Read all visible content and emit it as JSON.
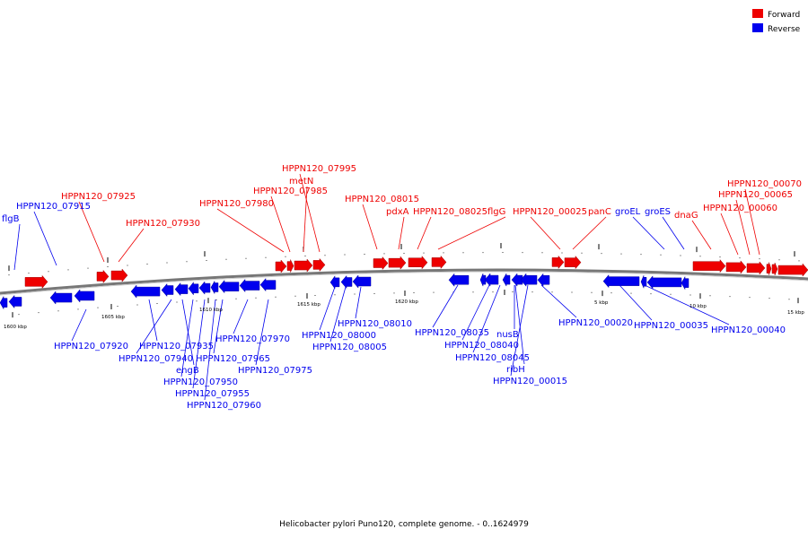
{
  "legend": {
    "forward": "Forward",
    "reverse": "Reverse",
    "forward_color": "#ee0000",
    "reverse_color": "#0000ee"
  },
  "caption": "Helicobacter pylori Puno120, complete genome. - 0..1624979",
  "ticks": [
    "1600 kbp",
    "1605 kbp",
    "1610 kbp",
    "1615 kbp",
    "1620 kbp",
    "5 kbp",
    "10 kbp",
    "15 kbp"
  ],
  "forward_genes": [
    "HPPN120_07925",
    "HPPN120_07930",
    "HPPN120_07980",
    "HPPN120_07985",
    "metN",
    "HPPN120_07995",
    "HPPN120_08015",
    "pdxA",
    "HPPN120_08025",
    "flgG",
    "HPPN120_00025",
    "panC",
    "dnaG",
    "HPPN120_00060",
    "HPPN120_00065",
    "HPPN120_00070"
  ],
  "reverse_genes": [
    "flgB",
    "HPPN120_07915",
    "HPPN120_07920",
    "HPPN120_07935",
    "HPPN120_07940",
    "engB",
    "HPPN120_07950",
    "HPPN120_07955",
    "HPPN120_07960",
    "HPPN120_07965",
    "HPPN120_07970",
    "HPPN120_07975",
    "HPPN120_08000",
    "HPPN120_08005",
    "HPPN120_08010",
    "HPPN120_08035",
    "HPPN120_08040",
    "HPPN120_08045",
    "nusB",
    "ribH",
    "HPPN120_00015",
    "HPPN120_00020",
    "groEL",
    "groES",
    "HPPN120_00035",
    "HPPN120_00040"
  ]
}
